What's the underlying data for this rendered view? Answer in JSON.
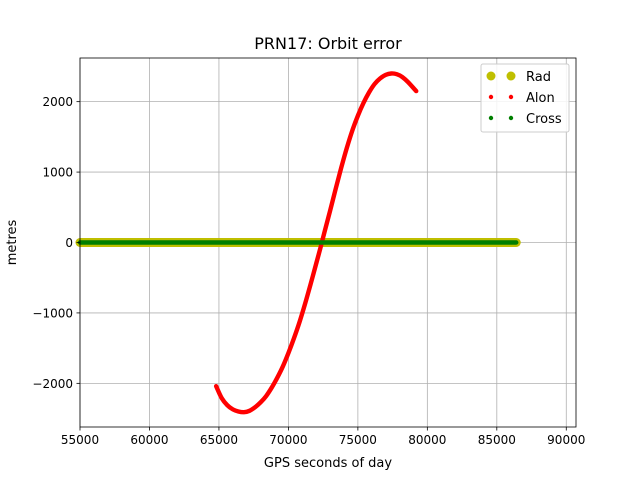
{
  "chart_data": {
    "type": "scatter",
    "title": "PRN17: Orbit error",
    "xlabel": "GPS seconds of day",
    "ylabel": "metres",
    "xlim": [
      55000,
      90700
    ],
    "ylim": [
      -2620,
      2620
    ],
    "xticks": [
      55000,
      60000,
      65000,
      70000,
      75000,
      80000,
      85000,
      90000
    ],
    "yticks": [
      -2000,
      -1000,
      0,
      1000,
      2000
    ],
    "xtick_labels": [
      "55000",
      "60000",
      "65000",
      "70000",
      "75000",
      "80000",
      "85000",
      "90000"
    ],
    "ytick_labels": [
      "−2000",
      "−1000",
      "0",
      "1000",
      "2000"
    ],
    "grid": true,
    "legend_placement": "top-right",
    "series": [
      {
        "name": "Rad",
        "color": "#bfbf00",
        "marker": "large-dot",
        "x_range": [
          55000,
          86400
        ],
        "y": 0,
        "points": [
          [
            55000,
            0
          ],
          [
            86400,
            0
          ]
        ]
      },
      {
        "name": "Alon",
        "color": "#ff0000",
        "marker": "dot",
        "x_range": [
          64800,
          79200
        ],
        "points": [
          [
            64800,
            -2040
          ],
          [
            65200,
            -2210
          ],
          [
            65600,
            -2310
          ],
          [
            66000,
            -2370
          ],
          [
            66400,
            -2400
          ],
          [
            66800,
            -2410
          ],
          [
            67200,
            -2390
          ],
          [
            67600,
            -2340
          ],
          [
            68000,
            -2270
          ],
          [
            68400,
            -2180
          ],
          [
            68800,
            -2060
          ],
          [
            69200,
            -1920
          ],
          [
            69600,
            -1760
          ],
          [
            70000,
            -1570
          ],
          [
            70400,
            -1360
          ],
          [
            70800,
            -1130
          ],
          [
            71200,
            -870
          ],
          [
            71600,
            -590
          ],
          [
            72000,
            -300
          ],
          [
            72300,
            -80
          ],
          [
            72600,
            150
          ],
          [
            73000,
            450
          ],
          [
            73400,
            760
          ],
          [
            73800,
            1060
          ],
          [
            74200,
            1340
          ],
          [
            74600,
            1590
          ],
          [
            75000,
            1800
          ],
          [
            75400,
            1980
          ],
          [
            75800,
            2130
          ],
          [
            76200,
            2250
          ],
          [
            76600,
            2330
          ],
          [
            77000,
            2380
          ],
          [
            77400,
            2400
          ],
          [
            77800,
            2390
          ],
          [
            78200,
            2350
          ],
          [
            78600,
            2280
          ],
          [
            79200,
            2150
          ]
        ]
      },
      {
        "name": "Cross",
        "color": "#007f00",
        "marker": "dot",
        "x_range": [
          55000,
          86400
        ],
        "y": 0,
        "points": [
          [
            55000,
            0
          ],
          [
            86400,
            0
          ]
        ]
      }
    ]
  }
}
